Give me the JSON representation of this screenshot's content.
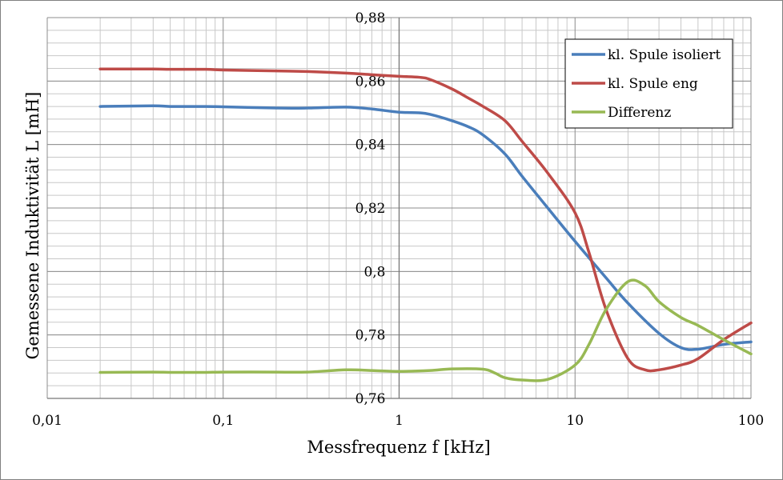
{
  "chart_data": {
    "type": "line",
    "xlabel": "Messfrequenz f [kHz]",
    "ylabel": "Gemessene Induktivität L [mH]",
    "x_scale": "log",
    "xlim": [
      0.01,
      100
    ],
    "ylim": [
      0.76,
      0.88
    ],
    "x_tick_labels": [
      "0,01",
      "0,1",
      "1",
      "10",
      "100"
    ],
    "y_tick_labels": [
      "0,76",
      "0,78",
      "0,8",
      "0,82",
      "0,84",
      "0,86",
      "0,88"
    ],
    "grid": true,
    "legend_position": "top-right",
    "series": [
      {
        "name": "kl. Spule isoliert",
        "color": "#4a7ebb",
        "x": [
          0.02,
          0.04,
          0.05,
          0.08,
          0.1,
          0.2,
          0.3,
          0.5,
          0.7,
          1,
          1.3,
          1.5,
          2,
          2.5,
          3,
          4,
          5,
          7,
          10,
          15,
          20,
          30,
          40,
          50,
          70,
          100
        ],
        "y": [
          0.852,
          0.8522,
          0.852,
          0.852,
          0.8519,
          0.8515,
          0.8515,
          0.8518,
          0.8512,
          0.8502,
          0.85,
          0.8495,
          0.8475,
          0.8455,
          0.843,
          0.837,
          0.83,
          0.82,
          0.8095,
          0.798,
          0.79,
          0.7805,
          0.776,
          0.7755,
          0.777,
          0.7778
        ]
      },
      {
        "name": "kl. Spule eng",
        "color": "#be4b48",
        "x": [
          0.02,
          0.04,
          0.05,
          0.08,
          0.1,
          0.2,
          0.3,
          0.5,
          0.7,
          1,
          1.3,
          1.5,
          2,
          2.5,
          3,
          4,
          5,
          7,
          10,
          12,
          15,
          20,
          25,
          30,
          40,
          50,
          70,
          100
        ],
        "y": [
          0.8638,
          0.8638,
          0.8637,
          0.8637,
          0.8635,
          0.8632,
          0.863,
          0.8625,
          0.862,
          0.8615,
          0.8612,
          0.8605,
          0.8575,
          0.8545,
          0.852,
          0.8475,
          0.841,
          0.831,
          0.8185,
          0.806,
          0.788,
          0.7725,
          0.769,
          0.769,
          0.7705,
          0.7725,
          0.7785,
          0.7838
        ]
      },
      {
        "name": "Differenz",
        "color": "#98b954",
        "x": [
          0.02,
          0.04,
          0.05,
          0.08,
          0.1,
          0.2,
          0.3,
          0.5,
          0.7,
          1,
          1.5,
          2,
          3,
          3.5,
          4,
          5,
          7,
          10,
          12,
          15,
          20,
          25,
          30,
          40,
          50,
          70,
          100
        ],
        "y": [
          0.7682,
          0.7683,
          0.7682,
          0.7682,
          0.7683,
          0.7683,
          0.7683,
          0.769,
          0.7688,
          0.7685,
          0.7688,
          0.7693,
          0.7692,
          0.768,
          0.7665,
          0.7658,
          0.766,
          0.7705,
          0.777,
          0.788,
          0.7968,
          0.7955,
          0.7905,
          0.7855,
          0.783,
          0.7785,
          0.774
        ]
      }
    ]
  }
}
